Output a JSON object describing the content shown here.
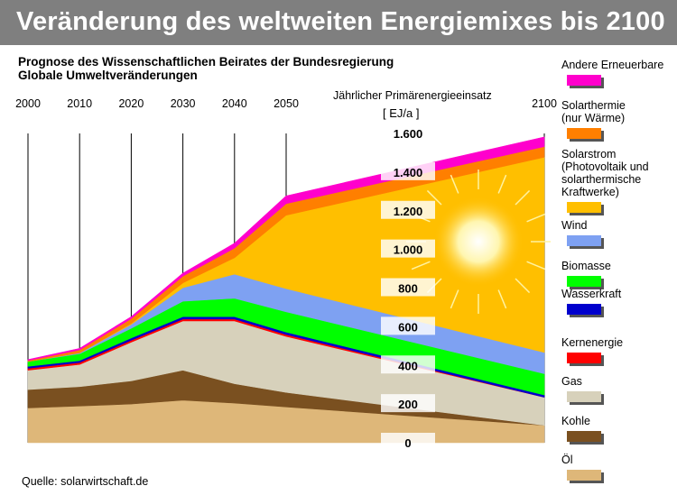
{
  "title": "Veränderung des weltweiten Energiemixes bis 2100",
  "subtitle": [
    "Prognose des Wissenschaftlichen Beirates der Bundesregierung",
    "Globale Umweltveränderungen"
  ],
  "axis_title": "Jährlicher Primärenergieeinsatz",
  "unit": "[ EJ/a ]",
  "source": "Quelle: solarwirtschaft.de",
  "chart_data": {
    "type": "area",
    "stacked": true,
    "x": [
      2000,
      2010,
      2020,
      2030,
      2040,
      2050,
      2100
    ],
    "x_tick_labels": [
      "2000",
      "2010",
      "2020",
      "2030",
      "2040",
      "2050",
      "2100"
    ],
    "y_tick_labels": [
      "0",
      "200",
      "400",
      "600",
      "800",
      "1.000",
      "1.200",
      "1.400",
      "1.600"
    ],
    "y_ticks": [
      0,
      200,
      400,
      600,
      800,
      1000,
      1200,
      1400,
      1600
    ],
    "ylim": [
      0,
      1600
    ],
    "ylabel": "Jährlicher Primärenergieeinsatz",
    "unit": "[ EJ/a ]",
    "series": [
      {
        "name": "Öl",
        "color": "#deb779",
        "values": [
          180,
          190,
          200,
          220,
          205,
          185,
          90
        ]
      },
      {
        "name": "Kohle",
        "color": "#7a5020",
        "values": [
          95,
          100,
          120,
          155,
          100,
          75,
          0
        ]
      },
      {
        "name": "Gas",
        "color": "#d7d1bb",
        "values": [
          100,
          115,
          200,
          255,
          325,
          290,
          145
        ]
      },
      {
        "name": "Kernenergie",
        "color": "#ff0000",
        "values": [
          10,
          10,
          10,
          10,
          10,
          10,
          0
        ]
      },
      {
        "name": "Wasserkraft",
        "color": "#0000cd",
        "values": [
          10,
          10,
          12,
          12,
          12,
          12,
          12
        ]
      },
      {
        "name": "Biomasse",
        "color": "#00ff00",
        "values": [
          25,
          35,
          50,
          80,
          95,
          105,
          110
        ]
      },
      {
        "name": "Wind",
        "color": "#7ea1f2",
        "values": [
          0,
          5,
          20,
          70,
          125,
          120,
          110
        ]
      },
      {
        "name": "Solarstrom (Photovoltaik und solarthermische Kraftwerke)",
        "color": "#ffbf00",
        "values": [
          0,
          0,
          5,
          25,
          85,
          380,
          1010
        ]
      },
      {
        "name": "Solarthermie (nur Wärme)",
        "color": "#ff7f00",
        "values": [
          5,
          15,
          25,
          35,
          50,
          60,
          55
        ]
      },
      {
        "name": "Andere Erneuerbare",
        "color": "#ff00cc",
        "values": [
          5,
          8,
          10,
          15,
          25,
          40,
          50
        ]
      }
    ],
    "legend": [
      {
        "label": "Andere Erneuerbare",
        "color": "#ff00cc"
      },
      {
        "label": "Solarthermie (nur Wärme)",
        "color": "#ff7f00"
      },
      {
        "label": "Solarstrom (Photovoltaik und solarthermische Kraftwerke)",
        "color": "#ffbf00"
      },
      {
        "label": "Wind",
        "color": "#7ea1f2"
      },
      {
        "label": "Biomasse",
        "color": "#00ff00"
      },
      {
        "label": "Wasserkraft",
        "color": "#0000cd"
      },
      {
        "label": "Kernenergie",
        "color": "#ff0000"
      },
      {
        "label": "Gas",
        "color": "#d7d1bb"
      },
      {
        "label": "Kohle",
        "color": "#7a5020"
      },
      {
        "label": "Öl",
        "color": "#deb779"
      }
    ],
    "legend_position": "right",
    "grid": "vertical"
  }
}
